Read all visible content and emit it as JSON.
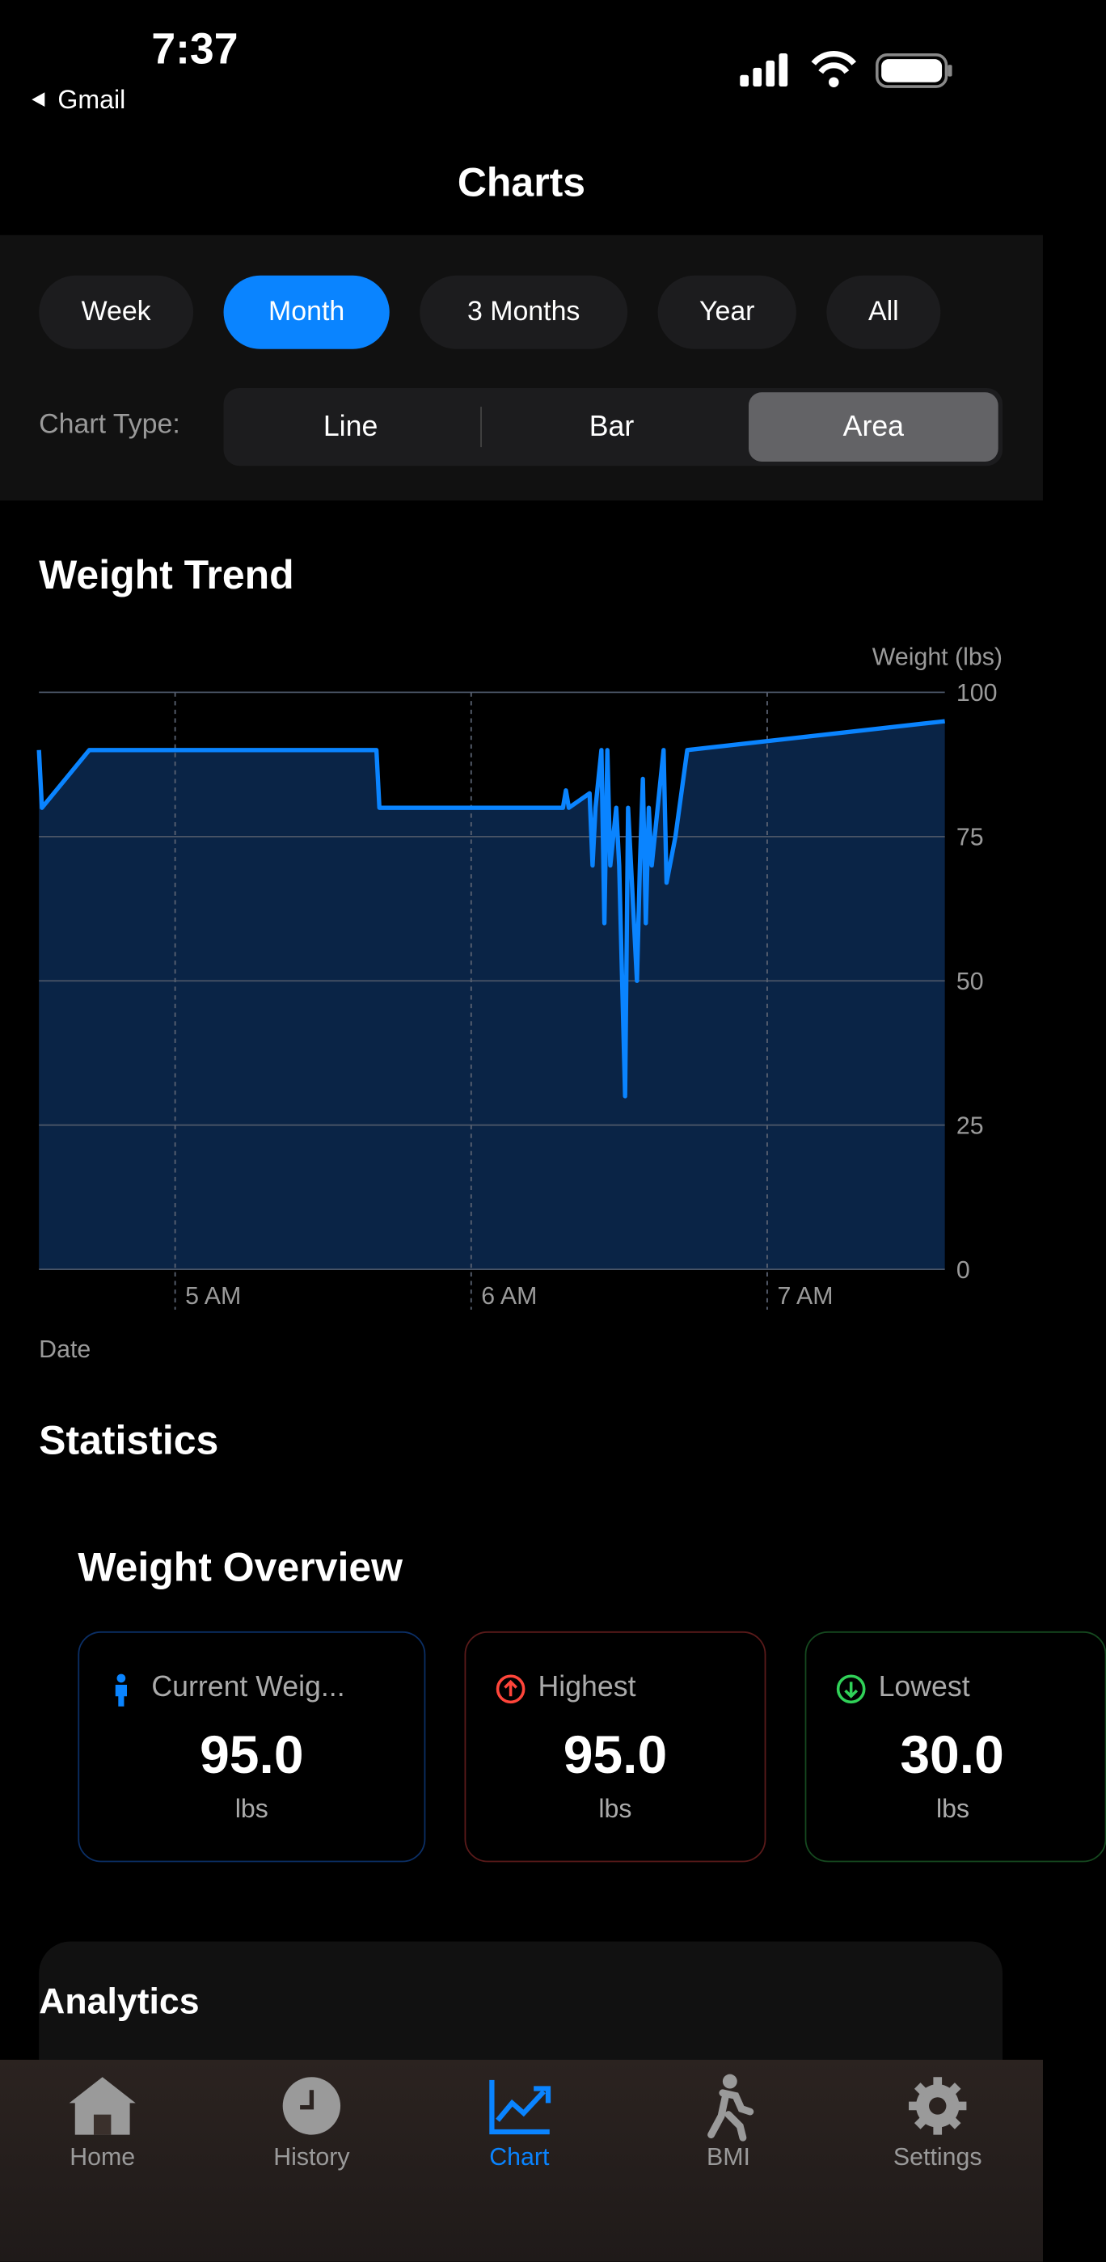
{
  "status_bar": {
    "time": "7:37",
    "back_app": "Gmail"
  },
  "nav": {
    "title": "Charts"
  },
  "filters": {
    "periods": [
      "Week",
      "Month",
      "3 Months",
      "Year",
      "All"
    ],
    "selected_period": "Month",
    "chart_type_label": "Chart Type:",
    "chart_types": [
      "Line",
      "Bar",
      "Area"
    ],
    "selected_chart_type": "Area"
  },
  "chart_data": {
    "type": "area",
    "title": "Weight Trend",
    "y_label": "Weight (lbs)",
    "x_label": "Date",
    "color": "#0a84ff",
    "fill": "#0c2a52",
    "grid": true,
    "x": [
      4.54,
      4.55,
      4.71,
      5.68,
      5.69,
      6.31,
      6.32,
      6.33,
      6.4,
      6.41,
      6.42,
      6.44,
      6.45,
      6.46,
      6.47,
      6.49,
      6.5,
      6.52,
      6.53,
      6.56,
      6.57,
      6.58,
      6.59,
      6.6,
      6.61,
      6.63,
      6.65,
      6.66,
      6.69,
      6.73,
      7.6
    ],
    "values": [
      90,
      80,
      90,
      90,
      80,
      80,
      83,
      80,
      82.5,
      70,
      80,
      90,
      60,
      90,
      70,
      80,
      70,
      30,
      80,
      50,
      70,
      85,
      60,
      80,
      70,
      80,
      90,
      67,
      75,
      90,
      95
    ],
    "xlim": [
      4.54,
      7.6
    ],
    "xticks": [
      {
        "value": 5,
        "label": "5 AM"
      },
      {
        "value": 6,
        "label": "6 AM"
      },
      {
        "value": 7,
        "label": "7 AM"
      }
    ],
    "ylim": [
      0,
      100
    ],
    "yticks": [
      0,
      25,
      50,
      75,
      100
    ]
  },
  "statistics": {
    "title": "Statistics",
    "overview_title": "Weight Overview",
    "cards": [
      {
        "label": "Current Weig...",
        "value": "95.0",
        "unit": "lbs"
      },
      {
        "label": "Highest",
        "value": "95.0",
        "unit": "lbs"
      },
      {
        "label": "Lowest",
        "value": "30.0",
        "unit": "lbs"
      }
    ]
  },
  "analytics": {
    "title": "Analytics"
  },
  "tab_bar": {
    "tabs": [
      "Home",
      "History",
      "Chart",
      "BMI",
      "Settings"
    ],
    "selected": "Chart"
  }
}
